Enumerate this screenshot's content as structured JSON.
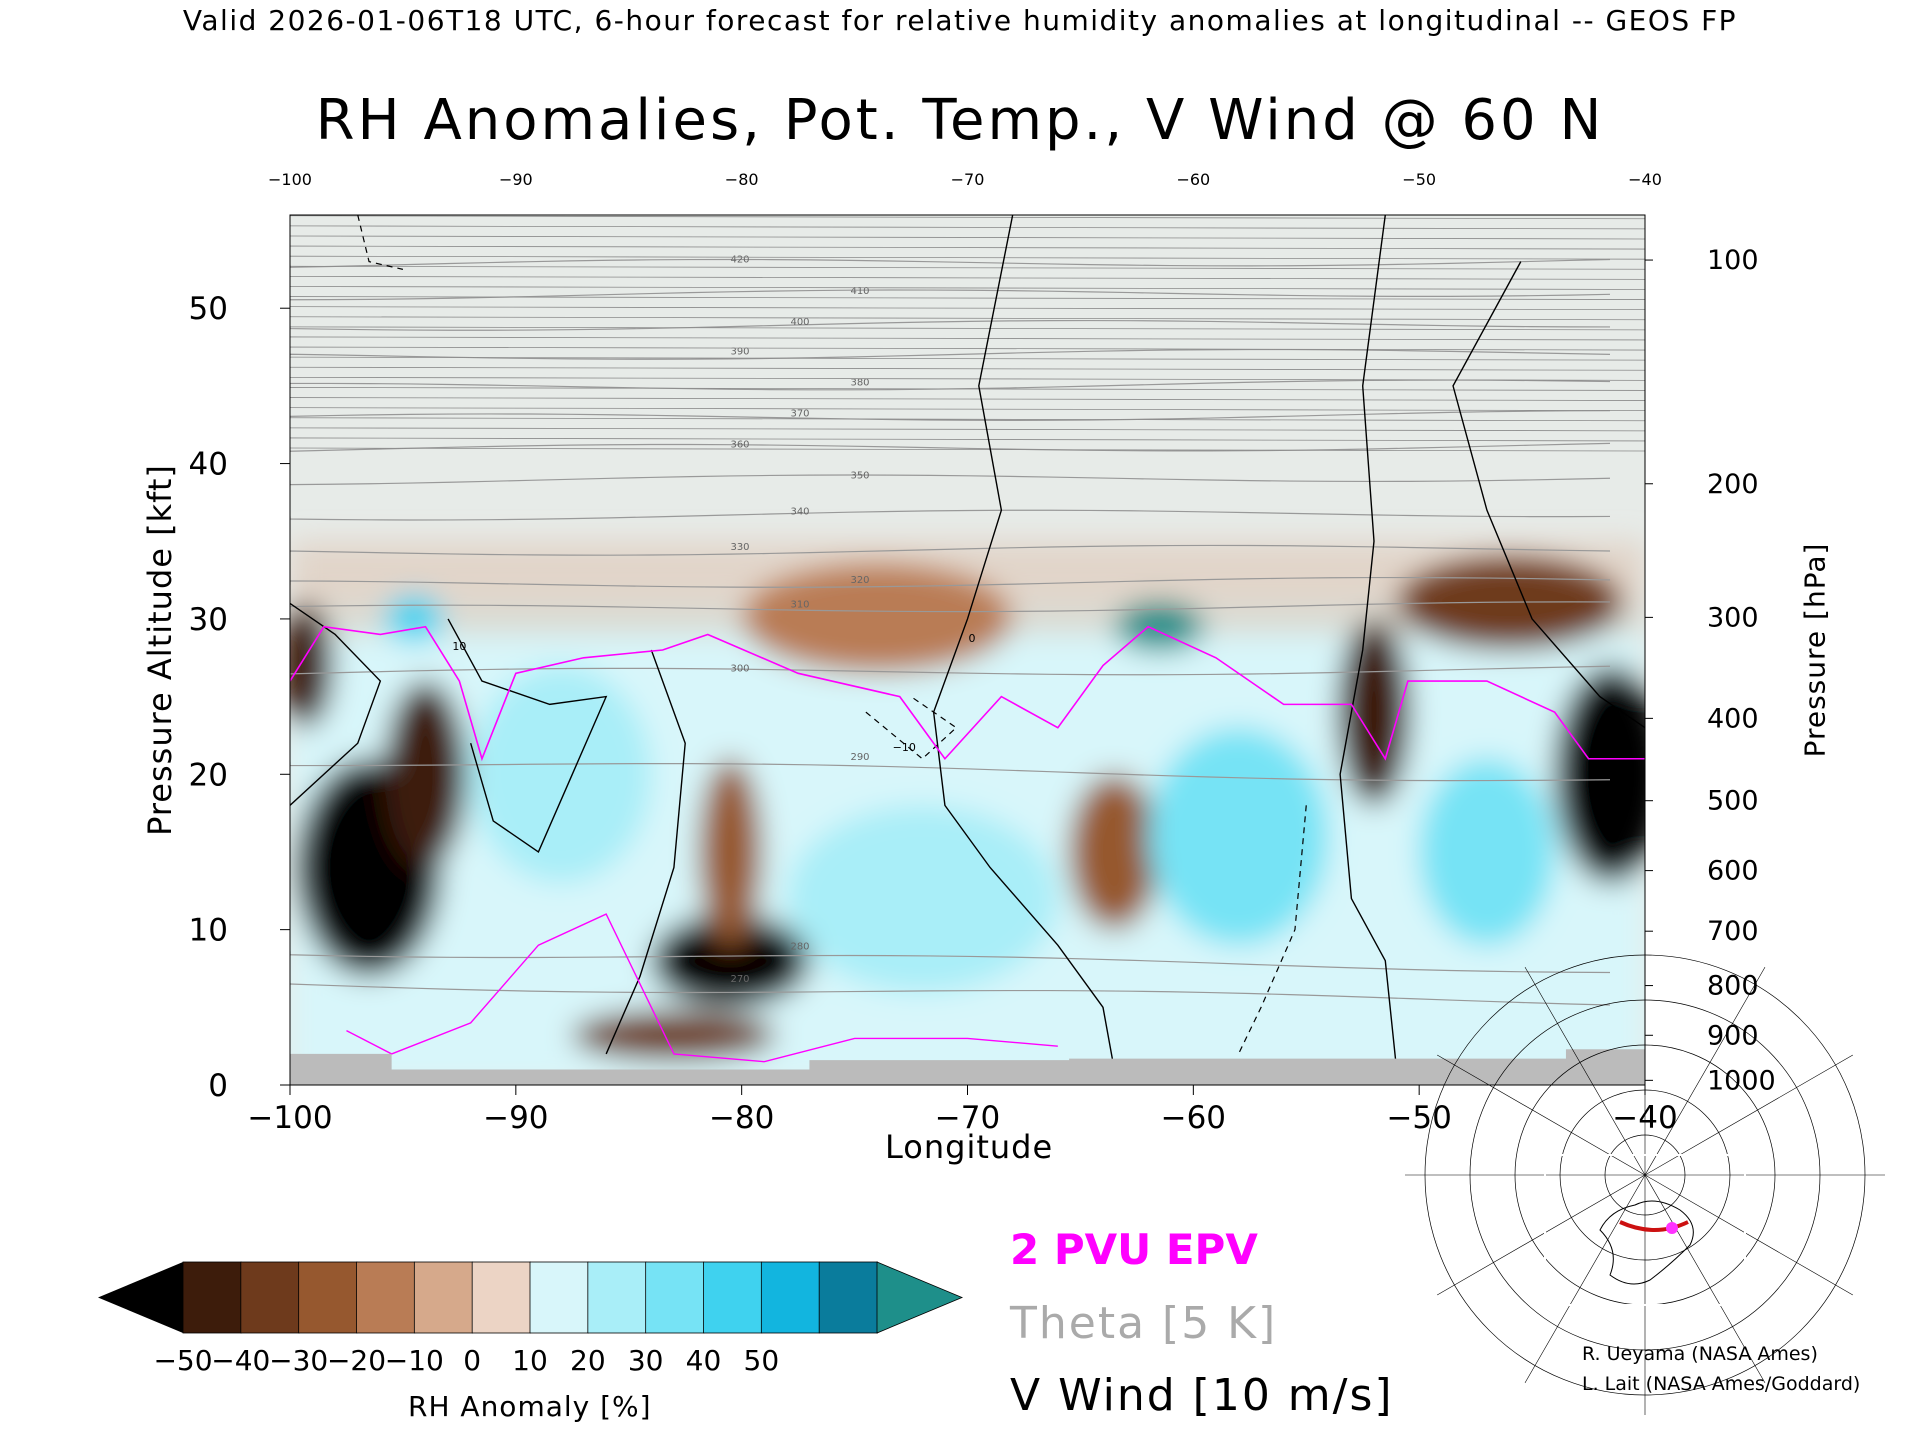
{
  "header": "Valid 2026-01-06T18 UTC, 6-hour forecast for relative humidity anomalies at longitudinal -- GEOS FP",
  "chart_data": {
    "type": "heatmap",
    "title": "RH Anomalies, Pot. Temp., V Wind @ 60 N",
    "xlabel": "Longitude",
    "ylabel": "Pressure Altitude [kft]",
    "y2label": "Pressure [hPa]",
    "xlim": [
      -100,
      -40
    ],
    "ylim": [
      0,
      56
    ],
    "x_ticks": [
      -100,
      -90,
      -80,
      -70,
      -60,
      -50,
      -40
    ],
    "x_tick_labels": [
      "−100",
      "−90",
      "−80",
      "−70",
      "−60",
      "−50",
      "−40"
    ],
    "top_x_ticks": [
      -100,
      -90,
      -80,
      -70,
      -60,
      -50,
      -40
    ],
    "y_ticks": [
      0,
      10,
      20,
      30,
      40,
      50
    ],
    "pressure_ticks": [
      {
        "hPa": 100,
        "kft": 53.1
      },
      {
        "hPa": 200,
        "kft": 38.7
      },
      {
        "hPa": 300,
        "kft": 30.1
      },
      {
        "hPa": 400,
        "kft": 23.6
      },
      {
        "hPa": 500,
        "kft": 18.3
      },
      {
        "hPa": 600,
        "kft": 13.8
      },
      {
        "hPa": 700,
        "kft": 9.9
      },
      {
        "hPa": 800,
        "kft": 6.4
      },
      {
        "hPa": 900,
        "kft": 3.2
      },
      {
        "hPa": 1000,
        "kft": 0.3
      }
    ],
    "colorbar": {
      "label": "RH Anomaly [%]",
      "ticks": [
        -50,
        -40,
        -30,
        -20,
        -10,
        0,
        10,
        20,
        30,
        40,
        50
      ],
      "tick_labels": [
        "−50",
        "−40",
        "−30",
        "−20",
        "−10",
        "0",
        "10",
        "20",
        "30",
        "40",
        "50"
      ],
      "colors": [
        "#3d1c0b",
        "#6e3a1c",
        "#96582f",
        "#b97c55",
        "#d6a98b",
        "#ecd4c5",
        "#d8f6fa",
        "#a9eef8",
        "#76e3f5",
        "#3fd2ef",
        "#12b5df",
        "#0a7c9c"
      ],
      "under_color": "#000000",
      "over_color": "#1e8f8a"
    },
    "theta_contours": [
      {
        "label": "270",
        "kft": 6.5
      },
      {
        "label": "280",
        "kft": 8.6
      },
      {
        "label": "290",
        "kft": 20.8
      },
      {
        "label": "300",
        "kft": 26.5
      },
      {
        "label": "310",
        "kft": 30.6
      },
      {
        "label": "320",
        "kft": 32.2
      },
      {
        "label": "330",
        "kft": 34.3
      },
      {
        "label": "340",
        "kft": 36.6
      },
      {
        "label": "350",
        "kft": 38.9
      },
      {
        "label": "360",
        "kft": 40.9
      },
      {
        "label": "370",
        "kft": 42.9
      },
      {
        "label": "380",
        "kft": 44.9
      },
      {
        "label": "390",
        "kft": 46.9
      },
      {
        "label": "400",
        "kft": 48.8
      },
      {
        "label": "410",
        "kft": 50.8
      },
      {
        "label": "420",
        "kft": 52.8
      }
    ],
    "v_wind_contour_labels": [
      "0",
      "10",
      "−10"
    ],
    "epv_contour": "2 PVU",
    "regions": [
      {
        "lon": -96.5,
        "kft": 14,
        "rh": -55,
        "rx": 3.2,
        "ry": 7
      },
      {
        "lon": -94.0,
        "kft": 20,
        "rh": -50,
        "rx": 1.8,
        "ry": 6
      },
      {
        "lon": -99.3,
        "kft": 27,
        "rh": -45,
        "rx": 1.2,
        "ry": 4
      },
      {
        "lon": -80.5,
        "kft": 8,
        "rh": -55,
        "rx": 3.5,
        "ry": 3
      },
      {
        "lon": -83.0,
        "kft": 3.2,
        "rh": -40,
        "rx": 4.5,
        "ry": 1.6
      },
      {
        "lon": -80.5,
        "kft": 15,
        "rh": -25,
        "rx": 1.4,
        "ry": 6
      },
      {
        "lon": -63.5,
        "kft": 15,
        "rh": -25,
        "rx": 2.0,
        "ry": 5
      },
      {
        "lon": -52,
        "kft": 24,
        "rh": -45,
        "rx": 1.6,
        "ry": 6
      },
      {
        "lon": -41.5,
        "kft": 20,
        "rh": -55,
        "rx": 2.5,
        "ry": 7
      },
      {
        "lon": -46,
        "kft": 31,
        "rh": -35,
        "rx": 5,
        "ry": 3
      },
      {
        "lon": -74,
        "kft": 30,
        "rh": -15,
        "rx": 6,
        "ry": 3.5
      },
      {
        "lon": -61.5,
        "kft": 29.5,
        "rh": 50,
        "rx": 2.0,
        "ry": 1.6
      },
      {
        "lon": -94.5,
        "kft": 30,
        "rh": 45,
        "rx": 1.3,
        "ry": 1.5
      },
      {
        "lon": -88,
        "kft": 20,
        "rh": 25,
        "rx": 4,
        "ry": 7
      },
      {
        "lon": -58,
        "kft": 16,
        "rh": 30,
        "rx": 4,
        "ry": 7
      },
      {
        "lon": -47,
        "kft": 15,
        "rh": 30,
        "rx": 3,
        "ry": 6
      },
      {
        "lon": -72,
        "kft": 12,
        "rh": 20,
        "rx": 6,
        "ry": 6
      }
    ],
    "stratosphere_rh": 2,
    "troposphere_rh": 18,
    "grid": false
  },
  "legend": {
    "epv": "2 PVU EPV",
    "theta": "Theta [5 K]",
    "vwind": "V Wind [10 m/s]"
  },
  "credits": {
    "line1": "R. Ueyama (NASA Ames)",
    "line2": "L. Lait (NASA Ames/Goddard)"
  },
  "colors": {
    "epv": "#ff00ff",
    "theta": "#999999",
    "ground": "#bbbbbb",
    "map_track": "#cc1111",
    "map_marker": "#ff33ff"
  }
}
